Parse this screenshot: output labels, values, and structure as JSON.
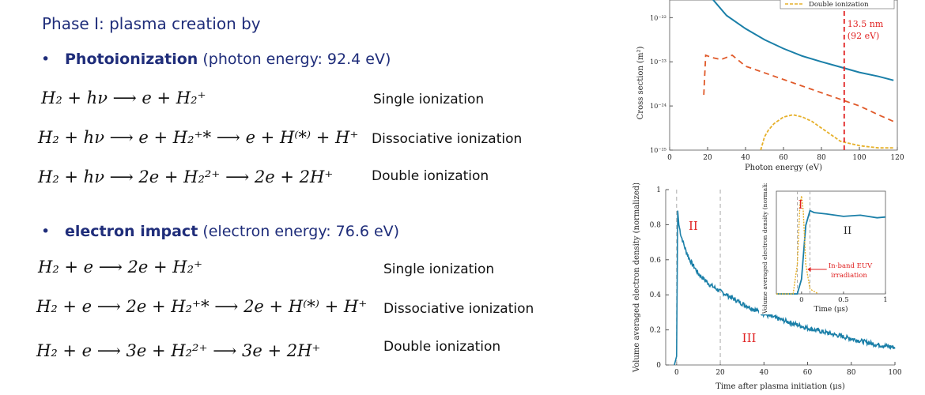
{
  "heading": "Phase I: plasma creation by",
  "photo": {
    "bullet_strong": "Photoionization",
    "bullet_rest": " (photon energy: 92.4 eV)",
    "reactions": [
      {
        "eq": "H₂ + hν ⟶ e + H₂⁺",
        "label": "Single ionization"
      },
      {
        "eq": "H₂ + hν ⟶ e + H₂⁺* ⟶ e + H⁽*⁾ + H⁺",
        "label": "Dissociative ionization"
      },
      {
        "eq": "H₂ + hν ⟶   2e + H₂²⁺ ⟶ 2e + 2H⁺",
        "label": "Double ionization"
      }
    ]
  },
  "electron": {
    "bullet_strong": "electron impact",
    "bullet_rest": " (electron energy: 76.6 eV)",
    "reactions": [
      {
        "eq": "H₂ + e ⟶ 2e + H₂⁺",
        "label": "Single ionization"
      },
      {
        "eq": "H₂ + e ⟶ 2e + H₂⁺* ⟶ 2e + H⁽*⁾ + H⁺",
        "label": "Dissociative ionization"
      },
      {
        "eq": "H₂ + e ⟶   3e + H₂²⁺ ⟶ 3e + 2H⁺",
        "label": "Double ionization"
      }
    ]
  },
  "chart_data": [
    {
      "type": "line",
      "xlabel": "Photon energy (eV)",
      "ylabel": "Cross section (m²)",
      "xlim": [
        0,
        120
      ],
      "ylim_log10": [
        -25,
        -21.6
      ],
      "xticks": [
        "0",
        "20",
        "40",
        "60",
        "80",
        "100",
        "120"
      ],
      "yticks": [
        "10⁻²²",
        "10⁻²³",
        "10⁻²⁴",
        "10⁻²⁵"
      ],
      "legend_visible": "Double ionization",
      "annotation": [
        "13.5 nm",
        "(92 eV)"
      ],
      "annotation_x": 92,
      "series": [
        {
          "name": "",
          "color": "#1a7fa8",
          "style": "solid",
          "x": [
            22,
            30,
            40,
            50,
            60,
            70,
            80,
            90,
            100,
            110,
            118
          ],
          "y_log10": [
            -21.55,
            -21.95,
            -22.25,
            -22.5,
            -22.7,
            -22.87,
            -23.0,
            -23.12,
            -23.24,
            -23.33,
            -23.42
          ]
        },
        {
          "name": "",
          "color": "#e05a2a",
          "style": "dashed",
          "x": [
            18,
            19,
            22,
            27,
            33,
            40,
            50,
            60,
            70,
            80,
            90,
            100,
            110,
            118
          ],
          "y_log10": [
            -23.75,
            -22.85,
            -22.9,
            -22.95,
            -22.85,
            -23.1,
            -23.25,
            -23.4,
            -23.55,
            -23.7,
            -23.85,
            -24.0,
            -24.2,
            -24.35
          ]
        },
        {
          "name": "Double ionization",
          "color": "#e6b02a",
          "style": "dashed",
          "x": [
            48,
            50,
            52,
            55,
            60,
            65,
            70,
            75,
            80,
            85,
            90,
            95,
            100,
            110,
            118
          ],
          "y_log10": [
            -25.0,
            -24.7,
            -24.55,
            -24.4,
            -24.25,
            -24.2,
            -24.25,
            -24.35,
            -24.5,
            -24.65,
            -24.8,
            -24.85,
            -24.9,
            -24.95,
            -24.95
          ]
        }
      ]
    },
    {
      "type": "line",
      "xlabel": "Time after plasma initiation (μs)",
      "ylabel": "Volume averaged electron density (normalized)",
      "xlim": [
        -5,
        100
      ],
      "ylim": [
        0,
        1
      ],
      "xticks": [
        "0",
        "20",
        "40",
        "60",
        "80",
        "100"
      ],
      "yticks": [
        "0",
        "0.2",
        "0.4",
        "0.6",
        "0.8",
        "1"
      ],
      "regions": [
        "II",
        "III"
      ],
      "series": [
        {
          "name": "",
          "color": "#1a7fa8",
          "x": [
            -1,
            0,
            0.5,
            1,
            2,
            4,
            6,
            8,
            10,
            15,
            20,
            30,
            40,
            50,
            60,
            70,
            80,
            90,
            100
          ],
          "y": [
            0,
            0.05,
            0.88,
            0.8,
            0.74,
            0.66,
            0.6,
            0.56,
            0.52,
            0.46,
            0.42,
            0.35,
            0.29,
            0.25,
            0.21,
            0.18,
            0.15,
            0.12,
            0.1
          ]
        }
      ],
      "inset": {
        "xlabel": "Time (μs)",
        "ylabel": "Volume averaged electron density (normalized)",
        "xlim": [
          -0.3,
          1
        ],
        "xticks": [
          "0",
          "0.5",
          "1"
        ],
        "regions": [
          "I",
          "II"
        ],
        "annotation": [
          "In-band EUV",
          "irradiation"
        ],
        "series": [
          {
            "name": "",
            "color": "#1a7fa8",
            "x": [
              -0.3,
              -0.05,
              0,
              0.05,
              0.1,
              0.15,
              0.3,
              0.5,
              0.7,
              0.9,
              1.0
            ],
            "y": [
              0,
              0,
              0.15,
              0.7,
              0.85,
              0.83,
              0.82,
              0.8,
              0.79,
              0.78,
              0.78
            ]
          },
          {
            "name": "",
            "color": "#e6b02a",
            "x": [
              -0.3,
              -0.1,
              -0.05,
              -0.02,
              0,
              0.02,
              0.05,
              0.1,
              0.2
            ],
            "y": [
              0,
              0,
              0.3,
              0.9,
              1.0,
              0.85,
              0.3,
              0.05,
              0
            ]
          }
        ]
      }
    }
  ]
}
